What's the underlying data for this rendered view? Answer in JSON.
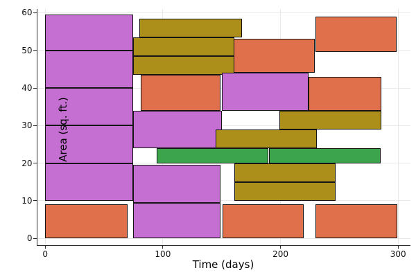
{
  "chart_data": {
    "type": "bar",
    "subtype": "time-span rectangles (gantt-like blocks)",
    "title": "",
    "xlabel": "Time (days)",
    "ylabel": "Area (sq. ft.)",
    "xlim": [
      -7.5,
      310.5
    ],
    "ylim": [
      -1.7,
      61
    ],
    "x_ticks": [
      0,
      100,
      200,
      300
    ],
    "y_ticks": [
      0,
      10,
      20,
      30,
      40,
      50,
      60
    ],
    "grid": true,
    "legend": "none",
    "background": "#ffffff",
    "grid_color": "#e9e9e9",
    "spine_color": "#2a2a2a",
    "rect_border_color": "#141414",
    "colors": {
      "purple": "#C46FD1",
      "orange": "#E0704B",
      "olive": "#AC8E1A",
      "green": "#3CA44C"
    },
    "rects": [
      {
        "x0": 0,
        "x1": 75,
        "y0": 10,
        "y1": 20,
        "color": "purple"
      },
      {
        "x0": 0,
        "x1": 75,
        "y0": 20,
        "y1": 30,
        "color": "purple"
      },
      {
        "x0": 0,
        "x1": 75,
        "y0": 30,
        "y1": 40,
        "color": "purple"
      },
      {
        "x0": 0,
        "x1": 75,
        "y0": 40,
        "y1": 50,
        "color": "purple"
      },
      {
        "x0": 0,
        "x1": 75,
        "y0": 50,
        "y1": 59.5,
        "color": "purple"
      },
      {
        "x0": 0,
        "x1": 70,
        "y0": 0,
        "y1": 9,
        "color": "orange"
      },
      {
        "x0": 75,
        "x1": 149,
        "y0": 0,
        "y1": 9.5,
        "color": "purple"
      },
      {
        "x0": 75,
        "x1": 149,
        "y0": 9.5,
        "y1": 19.5,
        "color": "purple"
      },
      {
        "x0": 75,
        "x1": 150,
        "y0": 24,
        "y1": 34,
        "color": "purple"
      },
      {
        "x0": 80,
        "x1": 167,
        "y0": 53.5,
        "y1": 58.5,
        "color": "olive"
      },
      {
        "x0": 75,
        "x1": 160.5,
        "y0": 48.5,
        "y1": 53.5,
        "color": "olive"
      },
      {
        "x0": 75,
        "x1": 161,
        "y0": 43.5,
        "y1": 48.5,
        "color": "olive"
      },
      {
        "x0": 81,
        "x1": 149,
        "y0": 34,
        "y1": 43.5,
        "color": "orange"
      },
      {
        "x0": 160,
        "x1": 229,
        "y0": 44,
        "y1": 53,
        "color": "orange"
      },
      {
        "x0": 150,
        "x1": 224,
        "y0": 34,
        "y1": 44,
        "color": "purple"
      },
      {
        "x0": 224,
        "x1": 286,
        "y0": 34,
        "y1": 43,
        "color": "orange"
      },
      {
        "x0": 230,
        "x1": 299,
        "y0": 49.5,
        "y1": 59,
        "color": "orange"
      },
      {
        "x0": 145,
        "x1": 231,
        "y0": 24,
        "y1": 29,
        "color": "olive"
      },
      {
        "x0": 199,
        "x1": 286,
        "y0": 29,
        "y1": 34,
        "color": "olive"
      },
      {
        "x0": 161,
        "x1": 247,
        "y0": 10,
        "y1": 15,
        "color": "olive"
      },
      {
        "x0": 161,
        "x1": 247,
        "y0": 15,
        "y1": 20,
        "color": "olive"
      },
      {
        "x0": 95,
        "x1": 189.5,
        "y0": 20,
        "y1": 24,
        "color": "green"
      },
      {
        "x0": 190.5,
        "x1": 285,
        "y0": 20,
        "y1": 24,
        "color": "green"
      },
      {
        "x0": 151,
        "x1": 219.5,
        "y0": 0,
        "y1": 9,
        "color": "orange"
      },
      {
        "x0": 230,
        "x1": 299.5,
        "y0": 0,
        "y1": 9,
        "color": "orange"
      }
    ]
  }
}
